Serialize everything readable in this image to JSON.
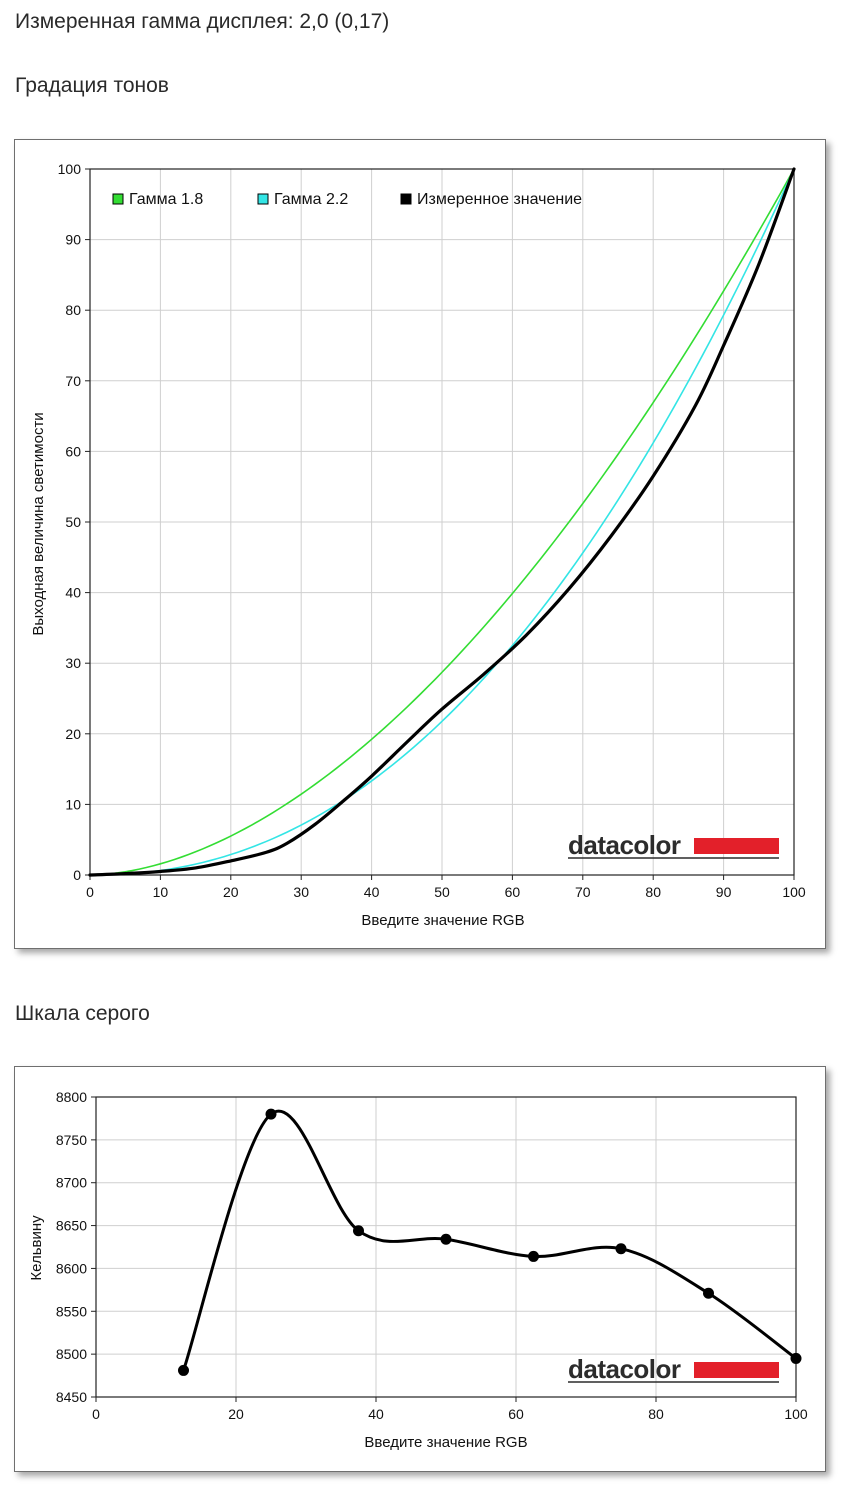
{
  "headings": {
    "gamma": "Измеренная гамма дисплея: 2,0 (0,17)",
    "tones": "Градация тонов",
    "gray": "Шкала серого"
  },
  "logo": {
    "text": "datacolor",
    "bar_color": "#e3202a"
  },
  "chart_data": [
    {
      "type": "line",
      "xlabel": "Введите значение RGB",
      "ylabel": "Выходная величина светимости",
      "xlim": [
        0,
        100
      ],
      "ylim": [
        0,
        100
      ],
      "xticks": [
        0,
        10,
        20,
        30,
        40,
        50,
        60,
        70,
        80,
        90,
        100
      ],
      "yticks": [
        0,
        10,
        20,
        30,
        40,
        50,
        60,
        70,
        80,
        90,
        100
      ],
      "grid": true,
      "legend_position": "top-left",
      "series": [
        {
          "name": "Гамма 1.8",
          "color": "#33dd33",
          "gamma": 1.8
        },
        {
          "name": "Гамма 2.2",
          "color": "#33e5e5",
          "gamma": 2.2
        },
        {
          "name": "Измеренное значение",
          "color": "#000000",
          "x": [
            0,
            5,
            10,
            15,
            20,
            25,
            28,
            32,
            36,
            40,
            45,
            50,
            56,
            62,
            68,
            74,
            80,
            86,
            90,
            95,
            100
          ],
          "y": [
            0,
            0.2,
            0.5,
            1.0,
            2.0,
            3.2,
            4.5,
            7.2,
            10.5,
            14.0,
            18.8,
            23.5,
            28.5,
            34.0,
            40.5,
            48.0,
            56.5,
            66.5,
            75.0,
            86.5,
            100
          ]
        }
      ]
    },
    {
      "type": "line",
      "xlabel": "Введите значение RGB",
      "ylabel": "Кельвину",
      "xlim": [
        0,
        100
      ],
      "ylim": [
        8450,
        8800
      ],
      "xticks": [
        0,
        20,
        40,
        60,
        80,
        100
      ],
      "yticks": [
        8450,
        8500,
        8550,
        8600,
        8650,
        8700,
        8750,
        8800
      ],
      "grid": true,
      "series": [
        {
          "color": "#000000",
          "x": [
            12.5,
            25,
            37.5,
            50,
            62.5,
            75,
            87.5,
            100
          ],
          "y": [
            8481,
            8780,
            8644,
            8634,
            8614,
            8623,
            8571,
            8495
          ]
        }
      ]
    }
  ]
}
